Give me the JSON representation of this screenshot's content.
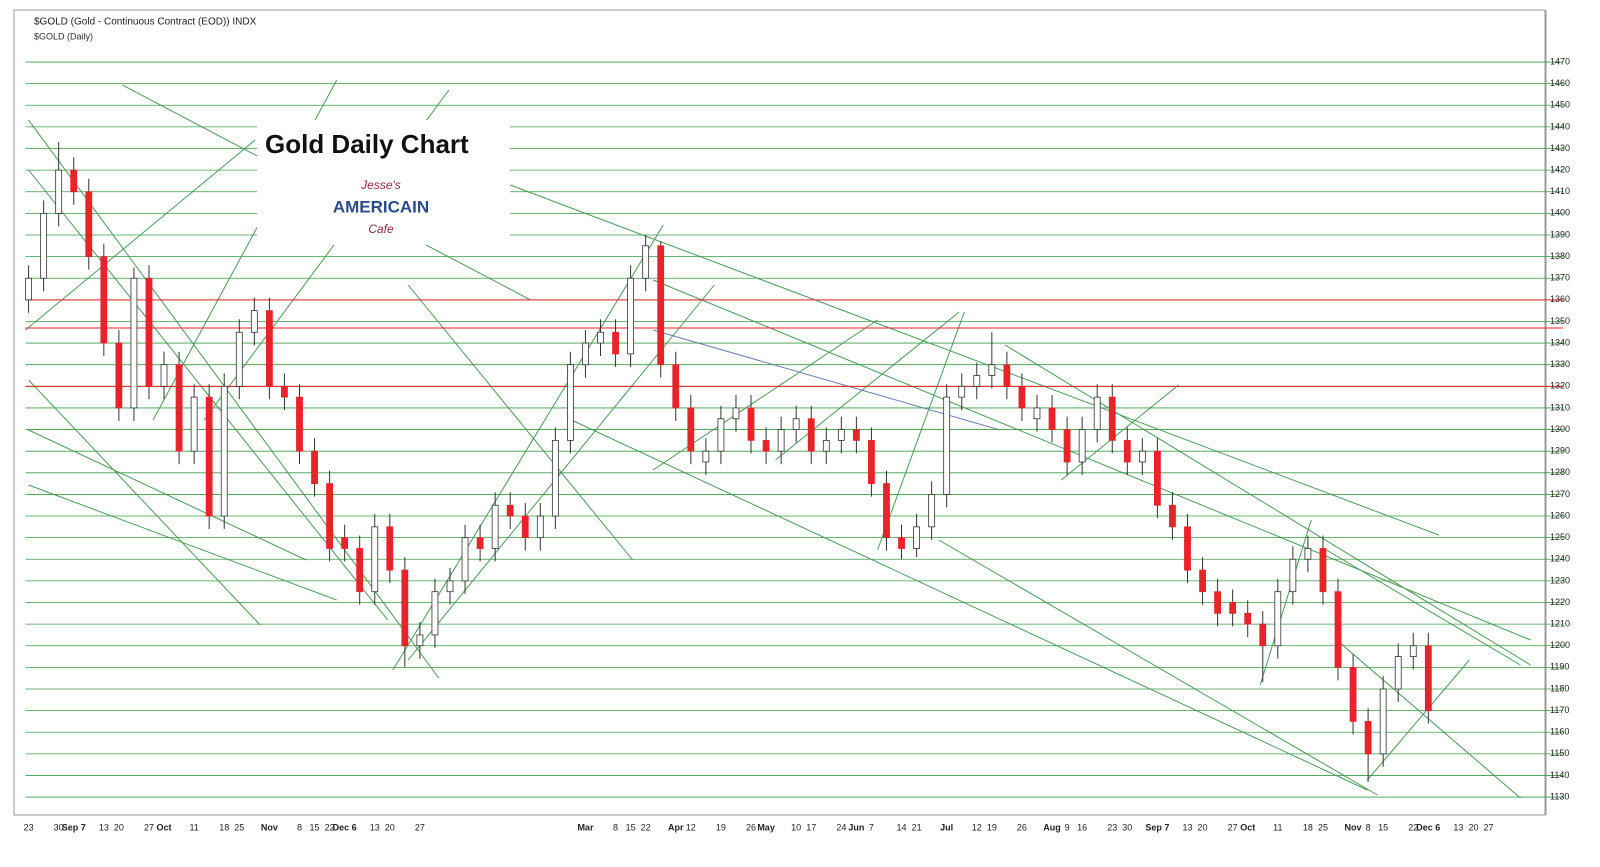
{
  "chart_data": {
    "type": "candlestick",
    "title": "$GOLD (Gold - Continuous Contract (EOD)) INDX",
    "subtitle": "$GOLD (Daily)",
    "annotation": "Gold Daily Chart",
    "logo": {
      "top": "Jesse's",
      "middle": "AMERICAIN",
      "bottom": "Cafe"
    },
    "categories": [
      "23",
      null,
      "30",
      "Sep 7",
      null,
      "13",
      "20",
      null,
      "27",
      "Oct",
      null,
      "11",
      null,
      "18",
      "25",
      null,
      "Nov",
      null,
      "8",
      "15",
      "22",
      "Dec 6",
      null,
      "13",
      "20",
      null,
      "27",
      null,
      null,
      null,
      null,
      null,
      null,
      null,
      null,
      null,
      null,
      "Mar",
      null,
      "8",
      "15",
      "22",
      null,
      "Apr",
      "12",
      null,
      "19",
      null,
      "26",
      "May",
      null,
      "10",
      "17",
      null,
      "24",
      "Jun",
      "7",
      null,
      "14",
      "21",
      null,
      "Jul",
      null,
      "12",
      "19",
      null,
      "26",
      null,
      "Aug",
      "9",
      "16",
      null,
      "23",
      "30",
      null,
      "Sep 7",
      null,
      "13",
      "20",
      null,
      "27",
      "Oct",
      null,
      "11",
      null,
      "18",
      "25",
      null,
      "Nov",
      "8",
      "15",
      null,
      "22",
      "Dec 6",
      null,
      "13",
      "20",
      "27"
    ],
    "open": [
      1360,
      1370,
      1400,
      1420,
      1410,
      1380,
      1340,
      1310,
      1370,
      1320,
      1330,
      1290,
      1315,
      1260,
      1320,
      1345,
      1355,
      1320,
      1315,
      1290,
      1275,
      1250,
      1245,
      1225,
      1255,
      1235,
      1200,
      1205,
      1225,
      1230,
      1250,
      1245,
      1265,
      1260,
      1250,
      1260,
      1295,
      1330,
      1340,
      1345,
      1335,
      1370,
      1385,
      1330,
      1310,
      1285,
      1290,
      1305,
      1310,
      1295,
      1290,
      1300,
      1305,
      1290,
      1295,
      1300,
      1295,
      1275,
      1250,
      1245,
      1255,
      1270,
      1315,
      1320,
      1325,
      1330,
      1320,
      1305,
      1310,
      1300,
      1285,
      1300,
      1315,
      1295,
      1285,
      1290,
      1265,
      1255,
      1235,
      1225,
      1220,
      1215,
      1210,
      1200,
      1225,
      1240,
      1245,
      1225,
      1190,
      1165,
      1150,
      1180,
      1195,
      1200,
      null,
      null,
      null,
      null
    ],
    "high": [
      1376,
      1406,
      1433,
      1426,
      1416,
      1386,
      1346,
      1375,
      1376,
      1336,
      1336,
      1321,
      1321,
      1326,
      1351,
      1361,
      1361,
      1326,
      1321,
      1296,
      1281,
      1256,
      1251,
      1261,
      1261,
      1241,
      1211,
      1231,
      1236,
      1256,
      1256,
      1271,
      1271,
      1266,
      1266,
      1301,
      1336,
      1346,
      1351,
      1351,
      1376,
      1390,
      1387,
      1336,
      1316,
      1296,
      1311,
      1316,
      1316,
      1301,
      1306,
      1311,
      1311,
      1301,
      1306,
      1306,
      1301,
      1281,
      1256,
      1261,
      1276,
      1321,
      1326,
      1331,
      1345,
      1336,
      1326,
      1316,
      1316,
      1306,
      1306,
      1321,
      1321,
      1301,
      1296,
      1296,
      1271,
      1261,
      1241,
      1231,
      1226,
      1221,
      1216,
      1231,
      1246,
      1251,
      1251,
      1231,
      1196,
      1171,
      1186,
      1201,
      1206,
      1206,
      null,
      null,
      null,
      null
    ],
    "low": [
      1354,
      1364,
      1394,
      1404,
      1374,
      1334,
      1304,
      1304,
      1314,
      1314,
      1284,
      1284,
      1254,
      1254,
      1314,
      1339,
      1314,
      1309,
      1284,
      1269,
      1239,
      1239,
      1219,
      1219,
      1229,
      1190,
      1194,
      1199,
      1219,
      1224,
      1239,
      1239,
      1254,
      1244,
      1244,
      1254,
      1289,
      1324,
      1334,
      1329,
      1329,
      1364,
      1324,
      1304,
      1284,
      1279,
      1284,
      1299,
      1289,
      1284,
      1284,
      1294,
      1284,
      1284,
      1289,
      1289,
      1269,
      1244,
      1240,
      1241,
      1249,
      1264,
      1309,
      1314,
      1319,
      1314,
      1304,
      1299,
      1294,
      1279,
      1279,
      1294,
      1289,
      1279,
      1279,
      1259,
      1249,
      1229,
      1219,
      1209,
      1209,
      1204,
      1183,
      1194,
      1219,
      1234,
      1219,
      1184,
      1159,
      1137,
      1144,
      1174,
      1189,
      1164,
      null,
      null,
      null,
      null
    ],
    "close": [
      1370,
      1400,
      1420,
      1410,
      1380,
      1340,
      1310,
      1370,
      1320,
      1330,
      1290,
      1315,
      1260,
      1320,
      1345,
      1355,
      1320,
      1315,
      1290,
      1275,
      1245,
      1245,
      1225,
      1255,
      1235,
      1200,
      1205,
      1225,
      1230,
      1250,
      1245,
      1265,
      1260,
      1250,
      1260,
      1295,
      1330,
      1340,
      1345,
      1335,
      1370,
      1385,
      1330,
      1310,
      1290,
      1290,
      1305,
      1310,
      1295,
      1290,
      1300,
      1305,
      1290,
      1295,
      1300,
      1295,
      1275,
      1250,
      1245,
      1255,
      1270,
      1315,
      1320,
      1325,
      1330,
      1320,
      1310,
      1310,
      1300,
      1285,
      1300,
      1315,
      1295,
      1285,
      1290,
      1265,
      1255,
      1235,
      1225,
      1215,
      1215,
      1210,
      1200,
      1225,
      1240,
      1245,
      1225,
      1190,
      1165,
      1150,
      1180,
      1195,
      1200,
      1170,
      null,
      null,
      null,
      null
    ],
    "up_color": "#ffffff",
    "down_color": "#e8232a",
    "ylim": [
      1120,
      1490
    ],
    "yticks": [
      1130,
      1140,
      1150,
      1160,
      1170,
      1180,
      1190,
      1200,
      1210,
      1220,
      1230,
      1240,
      1250,
      1260,
      1270,
      1280,
      1290,
      1300,
      1310,
      1320,
      1330,
      1340,
      1350,
      1360,
      1370,
      1380,
      1390,
      1400,
      1410,
      1420,
      1430,
      1440,
      1450,
      1460,
      1470
    ],
    "grid": true,
    "grid_color": "#3c9a4a",
    "horizontal_lines": [
      {
        "value": 1360,
        "color": "#e8232a"
      },
      {
        "value": 1347,
        "color": "#e8232a"
      },
      {
        "value": 1320,
        "color": "#e8232a"
      }
    ]
  }
}
